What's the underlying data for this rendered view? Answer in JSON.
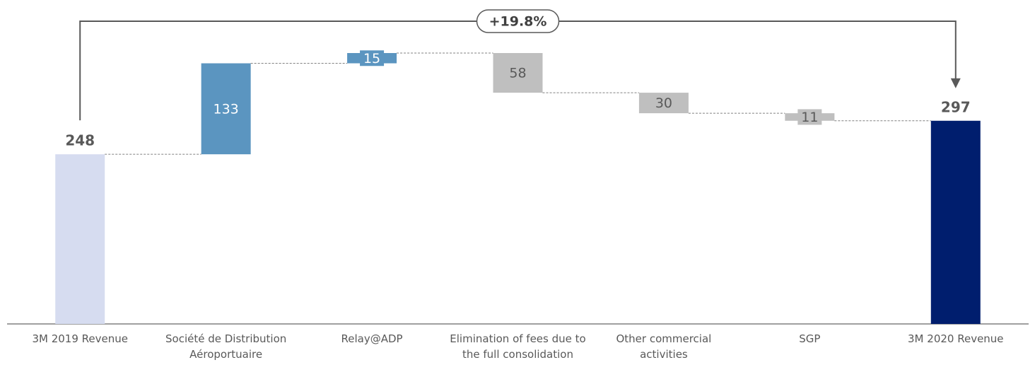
{
  "chart_data": {
    "type": "waterfall",
    "annotation": "+19.8%",
    "categories": [
      "3M 2019 Revenue",
      "Société de Distribution Aéroportuaire",
      "Relay@ADP",
      "Elimination of fees due to the full consolidation",
      "Other commercial activities",
      "SGP",
      "3M 2020 Revenue"
    ],
    "values": [
      248,
      133,
      15,
      -58,
      -30,
      -11,
      297
    ],
    "value_labels": [
      "248",
      "133",
      "15",
      "58",
      "30",
      "11",
      "297"
    ],
    "measure": [
      "total",
      "relative",
      "relative",
      "relative",
      "relative",
      "relative",
      "total"
    ],
    "colors": [
      "#d6dcf0",
      "#5b95c0",
      "#5b95c0",
      "#bfbfbf",
      "#bfbfbf",
      "#bfbfbf",
      "#001e6e"
    ]
  }
}
